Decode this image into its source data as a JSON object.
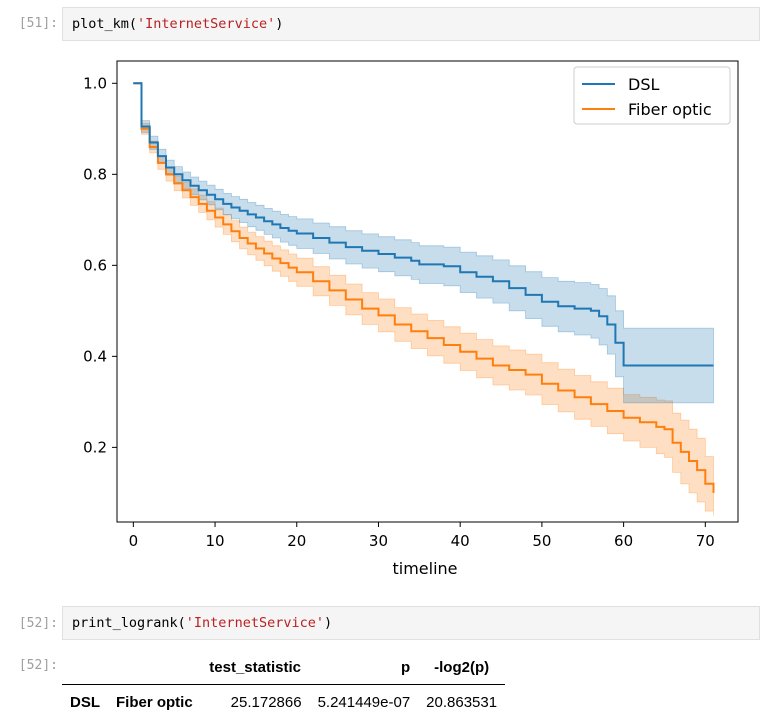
{
  "cells": [
    {
      "prompt": "[51]:",
      "code_fn": "plot_km(",
      "code_arg": "'InternetService'",
      "code_close": ")"
    },
    {
      "prompt": "[52]:",
      "code_fn": "print_logrank(",
      "code_arg": "'InternetService'",
      "code_close": ")"
    },
    {
      "prompt": "[52]:"
    }
  ],
  "colors": {
    "dsl": "#1f77b4",
    "fiber": "#ff7f0e"
  },
  "chart_data": {
    "type": "line",
    "title": "",
    "xlabel": "timeline",
    "ylabel": "",
    "xlim": [
      -2,
      74
    ],
    "ylim": [
      0.036,
      1.049
    ],
    "xticks": [
      0,
      10,
      20,
      30,
      40,
      50,
      60,
      70
    ],
    "yticks": [
      0.2,
      0.4,
      0.6,
      0.8,
      1.0
    ],
    "ytick_labels": [
      "0.2",
      "0.4",
      "0.6",
      "0.8",
      "1.0"
    ],
    "legend_position": "top-right",
    "series": [
      {
        "name": "DSL",
        "color": "#1f77b4",
        "x": [
          0,
          1,
          2,
          3,
          4,
          5,
          6,
          7,
          8,
          9,
          10,
          11,
          12,
          13,
          14,
          15,
          16,
          17,
          18,
          19,
          20,
          22,
          24,
          26,
          28,
          30,
          32,
          34,
          35,
          38,
          40,
          42,
          44,
          46,
          48,
          50,
          52,
          54,
          56,
          57,
          58,
          59,
          60,
          65,
          70,
          71
        ],
        "y": [
          1.0,
          0.905,
          0.87,
          0.84,
          0.815,
          0.8,
          0.787,
          0.775,
          0.765,
          0.755,
          0.745,
          0.735,
          0.727,
          0.72,
          0.712,
          0.705,
          0.697,
          0.69,
          0.682,
          0.676,
          0.67,
          0.66,
          0.65,
          0.64,
          0.632,
          0.625,
          0.617,
          0.61,
          0.602,
          0.598,
          0.585,
          0.575,
          0.565,
          0.55,
          0.535,
          0.52,
          0.51,
          0.505,
          0.5,
          0.488,
          0.47,
          0.43,
          0.38,
          0.38,
          0.38,
          0.38
        ],
        "ci_lower": [
          1.0,
          0.892,
          0.855,
          0.825,
          0.798,
          0.782,
          0.768,
          0.755,
          0.744,
          0.733,
          0.722,
          0.711,
          0.702,
          0.694,
          0.685,
          0.677,
          0.668,
          0.66,
          0.651,
          0.644,
          0.637,
          0.626,
          0.614,
          0.603,
          0.594,
          0.586,
          0.577,
          0.569,
          0.56,
          0.555,
          0.54,
          0.528,
          0.517,
          0.5,
          0.483,
          0.466,
          0.454,
          0.447,
          0.44,
          0.425,
          0.405,
          0.355,
          0.298,
          0.298,
          0.298,
          0.298
        ],
        "ci_upper": [
          1.0,
          0.918,
          0.884,
          0.855,
          0.831,
          0.817,
          0.805,
          0.794,
          0.785,
          0.776,
          0.767,
          0.758,
          0.751,
          0.745,
          0.738,
          0.732,
          0.725,
          0.719,
          0.712,
          0.707,
          0.702,
          0.693,
          0.685,
          0.676,
          0.669,
          0.663,
          0.656,
          0.65,
          0.643,
          0.64,
          0.629,
          0.621,
          0.612,
          0.599,
          0.586,
          0.573,
          0.565,
          0.562,
          0.558,
          0.549,
          0.533,
          0.5,
          0.462,
          0.462,
          0.462,
          0.462
        ]
      },
      {
        "name": "Fiber optic",
        "color": "#ff7f0e",
        "x": [
          0,
          1,
          2,
          3,
          4,
          5,
          6,
          7,
          8,
          9,
          10,
          11,
          12,
          13,
          14,
          15,
          16,
          17,
          18,
          19,
          20,
          22,
          24,
          26,
          28,
          30,
          32,
          34,
          36,
          38,
          40,
          42,
          44,
          46,
          48,
          50,
          52,
          54,
          56,
          58,
          60,
          62,
          64,
          65,
          66,
          67,
          68,
          69,
          70,
          71
        ],
        "y": [
          1.0,
          0.9,
          0.86,
          0.825,
          0.8,
          0.78,
          0.765,
          0.75,
          0.735,
          0.72,
          0.705,
          0.69,
          0.675,
          0.66,
          0.648,
          0.637,
          0.626,
          0.615,
          0.605,
          0.595,
          0.585,
          0.565,
          0.545,
          0.525,
          0.505,
          0.49,
          0.47,
          0.455,
          0.44,
          0.425,
          0.41,
          0.395,
          0.38,
          0.37,
          0.36,
          0.34,
          0.325,
          0.31,
          0.295,
          0.28,
          0.265,
          0.255,
          0.245,
          0.24,
          0.21,
          0.19,
          0.17,
          0.15,
          0.12,
          0.1
        ],
        "ci_lower": [
          1.0,
          0.888,
          0.847,
          0.811,
          0.785,
          0.764,
          0.748,
          0.732,
          0.716,
          0.7,
          0.684,
          0.668,
          0.652,
          0.636,
          0.623,
          0.611,
          0.599,
          0.587,
          0.576,
          0.565,
          0.554,
          0.533,
          0.512,
          0.491,
          0.47,
          0.454,
          0.433,
          0.417,
          0.401,
          0.385,
          0.369,
          0.353,
          0.337,
          0.326,
          0.315,
          0.294,
          0.278,
          0.262,
          0.246,
          0.23,
          0.214,
          0.2,
          0.186,
          0.178,
          0.145,
          0.12,
          0.1,
          0.08,
          0.06,
          0.05
        ],
        "ci_upper": [
          1.0,
          0.912,
          0.873,
          0.839,
          0.815,
          0.796,
          0.782,
          0.768,
          0.754,
          0.74,
          0.726,
          0.712,
          0.698,
          0.684,
          0.673,
          0.663,
          0.653,
          0.643,
          0.634,
          0.625,
          0.616,
          0.597,
          0.578,
          0.559,
          0.54,
          0.526,
          0.507,
          0.493,
          0.479,
          0.465,
          0.451,
          0.437,
          0.423,
          0.414,
          0.405,
          0.386,
          0.372,
          0.358,
          0.344,
          0.33,
          0.316,
          0.31,
          0.304,
          0.302,
          0.275,
          0.26,
          0.24,
          0.22,
          0.18,
          0.15
        ]
      }
    ]
  },
  "logrank_table": {
    "columns": [
      "test_statistic",
      "p",
      "-log2(p)"
    ],
    "rows": [
      {
        "group1": "DSL",
        "group2": "Fiber optic",
        "values": [
          "25.172866",
          "5.241449e-07",
          "20.863531"
        ]
      }
    ]
  }
}
